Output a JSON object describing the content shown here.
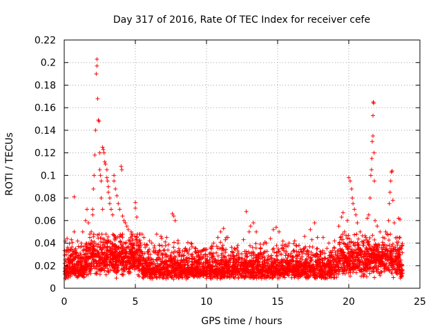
{
  "chart_data": {
    "type": "scatter",
    "title": "Day 317 of 2016, Rate Of TEC Index for receiver cefe",
    "xlabel": "GPS time / hours",
    "ylabel": "ROTI / TECUs",
    "xlim": [
      0,
      25
    ],
    "ylim": [
      0,
      0.22
    ],
    "xticks": [
      0,
      5,
      10,
      15,
      20,
      25
    ],
    "yticks": [
      0,
      0.02,
      0.04,
      0.06,
      0.08,
      0.1,
      0.12,
      0.14,
      0.16,
      0.18,
      0.2,
      0.22
    ],
    "grid": true,
    "marker": "+",
    "color": "#ff0000",
    "series": [
      {
        "name": "ROTI",
        "points": [
          [
            0.1,
            0.033
          ],
          [
            0.2,
            0.044
          ],
          [
            0.4,
            0.025
          ],
          [
            0.5,
            0.043
          ],
          [
            0.6,
            0.02
          ],
          [
            0.7,
            0.081
          ],
          [
            0.7,
            0.05
          ],
          [
            0.8,
            0.035
          ],
          [
            1.0,
            0.037
          ],
          [
            1.2,
            0.04
          ],
          [
            1.3,
            0.05
          ],
          [
            1.5,
            0.06
          ],
          [
            1.6,
            0.07
          ],
          [
            1.7,
            0.058
          ],
          [
            1.8,
            0.048
          ],
          [
            1.9,
            0.05
          ],
          [
            2.0,
            0.065
          ],
          [
            2.0,
            0.07
          ],
          [
            2.05,
            0.088
          ],
          [
            2.1,
            0.1
          ],
          [
            2.15,
            0.118
          ],
          [
            2.2,
            0.14
          ],
          [
            2.25,
            0.19
          ],
          [
            2.3,
            0.203
          ],
          [
            2.3,
            0.197
          ],
          [
            2.35,
            0.168
          ],
          [
            2.4,
            0.149
          ],
          [
            2.45,
            0.148
          ],
          [
            2.5,
            0.12
          ],
          [
            2.5,
            0.105
          ],
          [
            2.55,
            0.1
          ],
          [
            2.6,
            0.095
          ],
          [
            2.6,
            0.08
          ],
          [
            2.7,
            0.07
          ],
          [
            2.7,
            0.125
          ],
          [
            2.75,
            0.123
          ],
          [
            2.8,
            0.12
          ],
          [
            2.85,
            0.112
          ],
          [
            2.9,
            0.11
          ],
          [
            3.0,
            0.105
          ],
          [
            3.0,
            0.098
          ],
          [
            3.05,
            0.095
          ],
          [
            3.1,
            0.09
          ],
          [
            3.1,
            0.085
          ],
          [
            3.2,
            0.08
          ],
          [
            3.2,
            0.075
          ],
          [
            3.3,
            0.07
          ],
          [
            3.4,
            0.065
          ],
          [
            3.5,
            0.1
          ],
          [
            3.5,
            0.095
          ],
          [
            3.6,
            0.088
          ],
          [
            3.7,
            0.082
          ],
          [
            3.8,
            0.075
          ],
          [
            3.9,
            0.07
          ],
          [
            4.0,
            0.108
          ],
          [
            4.05,
            0.105
          ],
          [
            4.1,
            0.064
          ],
          [
            4.2,
            0.06
          ],
          [
            4.3,
            0.058
          ],
          [
            4.4,
            0.055
          ],
          [
            4.5,
            0.052
          ],
          [
            4.7,
            0.05
          ],
          [
            5.0,
            0.076
          ],
          [
            5.0,
            0.071
          ],
          [
            5.1,
            0.063
          ],
          [
            5.3,
            0.048
          ],
          [
            5.6,
            0.045
          ],
          [
            6.0,
            0.042
          ],
          [
            6.5,
            0.048
          ],
          [
            6.8,
            0.046
          ],
          [
            7.2,
            0.045
          ],
          [
            7.6,
            0.066
          ],
          [
            7.7,
            0.064
          ],
          [
            7.8,
            0.06
          ],
          [
            8.0,
            0.04
          ],
          [
            8.5,
            0.035
          ],
          [
            9.0,
            0.03
          ],
          [
            9.5,
            0.028
          ],
          [
            10.0,
            0.025
          ],
          [
            10.5,
            0.04
          ],
          [
            10.8,
            0.045
          ],
          [
            11.0,
            0.05
          ],
          [
            11.2,
            0.053
          ],
          [
            11.4,
            0.045
          ],
          [
            11.8,
            0.032
          ],
          [
            12.2,
            0.038
          ],
          [
            12.6,
            0.043
          ],
          [
            12.8,
            0.068
          ],
          [
            13.0,
            0.05
          ],
          [
            13.1,
            0.055
          ],
          [
            13.3,
            0.058
          ],
          [
            13.5,
            0.05
          ],
          [
            13.8,
            0.035
          ],
          [
            14.2,
            0.04
          ],
          [
            14.5,
            0.044
          ],
          [
            14.7,
            0.052
          ],
          [
            14.9,
            0.054
          ],
          [
            15.1,
            0.05
          ],
          [
            15.3,
            0.035
          ],
          [
            15.8,
            0.04
          ],
          [
            16.2,
            0.042
          ],
          [
            16.5,
            0.038
          ],
          [
            16.9,
            0.046
          ],
          [
            17.3,
            0.052
          ],
          [
            17.6,
            0.058
          ],
          [
            17.8,
            0.045
          ],
          [
            18.2,
            0.045
          ],
          [
            18.6,
            0.04
          ],
          [
            19.0,
            0.042
          ],
          [
            19.3,
            0.055
          ],
          [
            19.5,
            0.063
          ],
          [
            19.6,
            0.067
          ],
          [
            19.7,
            0.05
          ],
          [
            19.9,
            0.06
          ],
          [
            20.0,
            0.098
          ],
          [
            20.1,
            0.095
          ],
          [
            20.2,
            0.088
          ],
          [
            20.25,
            0.08
          ],
          [
            20.3,
            0.075
          ],
          [
            20.4,
            0.07
          ],
          [
            20.5,
            0.065
          ],
          [
            20.6,
            0.058
          ],
          [
            20.8,
            0.05
          ],
          [
            21.0,
            0.04
          ],
          [
            21.2,
            0.045
          ],
          [
            21.3,
            0.062
          ],
          [
            21.4,
            0.065
          ],
          [
            21.5,
            0.08
          ],
          [
            21.55,
            0.1
          ],
          [
            21.6,
            0.105
          ],
          [
            21.62,
            0.115
          ],
          [
            21.65,
            0.13
          ],
          [
            21.7,
            0.135
          ],
          [
            21.7,
            0.153
          ],
          [
            21.72,
            0.165
          ],
          [
            21.75,
            0.164
          ],
          [
            21.78,
            0.12
          ],
          [
            21.8,
            0.095
          ],
          [
            21.85,
            0.06
          ],
          [
            22.0,
            0.055
          ],
          [
            22.2,
            0.05
          ],
          [
            22.4,
            0.045
          ],
          [
            22.6,
            0.05
          ],
          [
            22.8,
            0.06
          ],
          [
            22.85,
            0.075
          ],
          [
            22.9,
            0.085
          ],
          [
            22.95,
            0.095
          ],
          [
            23.0,
            0.103
          ],
          [
            23.05,
            0.104
          ],
          [
            23.1,
            0.078
          ],
          [
            23.2,
            0.058
          ],
          [
            23.4,
            0.045
          ],
          [
            23.5,
            0.062
          ],
          [
            23.6,
            0.061
          ],
          [
            23.7,
            0.035
          ]
        ]
      }
    ]
  }
}
